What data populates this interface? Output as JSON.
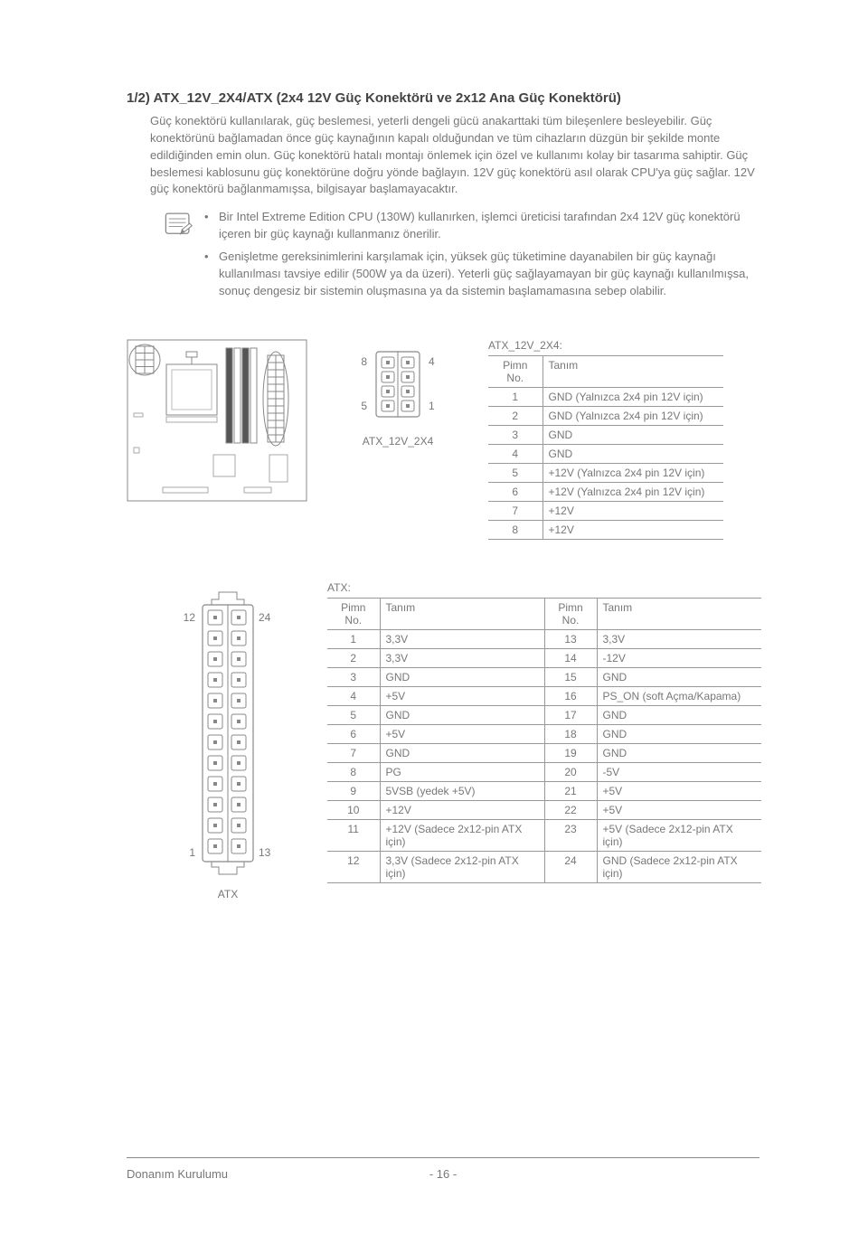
{
  "heading": "1/2) ATX_12V_2X4/ATX (2x4 12V Güç Konektörü ve 2x12 Ana Güç Konektörü)",
  "paragraph": "Güç konektörü kullanılarak, güç beslemesi, yeterli dengeli gücü anakarttaki tüm bileşenlere besleyebilir. Güç konektörünü bağlamadan önce güç kaynağının kapalı olduğundan ve tüm cihazların düzgün bir şekilde monte edildiğinden emin olun. Güç konektörü hatalı montajı önlemek için özel ve kullanımı kolay bir tasarıma sahiptir. Güç beslemesi kablosunu güç konektörüne doğru yönde bağlayın. 12V güç konektörü asıl olarak CPU'ya güç sağlar. 12V güç konektörü bağlanmamışsa, bilgisayar başlamayacaktır.",
  "notes": [
    "Bir Intel Extreme Edition CPU (130W) kullanırken, işlemci üreticisi tarafından 2x4 12V güç konektörü içeren bir güç kaynağı kullanmanız önerilir.",
    "Genişletme gereksinimlerini karşılamak için, yüksek güç tüketimine dayanabilen bir güç kaynağı kullanılması tavsiye edilir (500W ya da üzeri). Yeterli güç sağlayamayan bir güç kaynağı kullanılmışsa, sonuç dengesiz bir sistemin oluşmasına ya da sistemin başlamamasına sebep olabilir."
  ],
  "conn8": {
    "label": "ATX_12V_2X4",
    "pins": {
      "tl": "8",
      "tr": "4",
      "bl": "5",
      "br": "1"
    }
  },
  "table8": {
    "title": "ATX_12V_2X4:",
    "headers": [
      "Pimn No.",
      "Tanım"
    ],
    "rows": [
      [
        "1",
        "GND (Yalnızca 2x4 pin 12V için)"
      ],
      [
        "2",
        "GND (Yalnızca 2x4 pin 12V için)"
      ],
      [
        "3",
        "GND"
      ],
      [
        "4",
        "GND"
      ],
      [
        "5",
        "+12V (Yalnızca 2x4 pin 12V için)"
      ],
      [
        "6",
        "+12V (Yalnızca 2x4 pin 12V için)"
      ],
      [
        "7",
        "+12V"
      ],
      [
        "8",
        "+12V"
      ]
    ]
  },
  "conn24": {
    "label": "ATX",
    "pins": {
      "tl": "12",
      "tr": "24",
      "bl": "1",
      "br": "13"
    }
  },
  "tableAtx": {
    "title": "ATX:",
    "headers": [
      "Pimn No.",
      "Tanım",
      "Pimn No.",
      "Tanım"
    ],
    "rows": [
      [
        "1",
        "3,3V",
        "13",
        "3,3V"
      ],
      [
        "2",
        "3,3V",
        "14",
        "-12V"
      ],
      [
        "3",
        "GND",
        "15",
        "GND"
      ],
      [
        "4",
        "+5V",
        "16",
        "PS_ON (soft Açma/Kapama)"
      ],
      [
        "5",
        "GND",
        "17",
        "GND"
      ],
      [
        "6",
        "+5V",
        "18",
        "GND"
      ],
      [
        "7",
        "GND",
        "19",
        "GND"
      ],
      [
        "8",
        "PG",
        "20",
        "-5V"
      ],
      [
        "9",
        "5VSB (yedek +5V)",
        "21",
        "+5V"
      ],
      [
        "10",
        "+12V",
        "22",
        "+5V"
      ],
      [
        "11",
        "+12V (Sadece 2x12-pin ATX için)",
        "23",
        "+5V (Sadece 2x12-pin ATX için)"
      ],
      [
        "12",
        "3,3V (Sadece 2x12-pin ATX için)",
        "24",
        "GND (Sadece 2x12-pin ATX için)"
      ]
    ]
  },
  "footer": {
    "section": "Donanım Kurulumu",
    "page": "- 16 -"
  },
  "colors": {
    "stroke": "#888888",
    "text": "#777777"
  }
}
